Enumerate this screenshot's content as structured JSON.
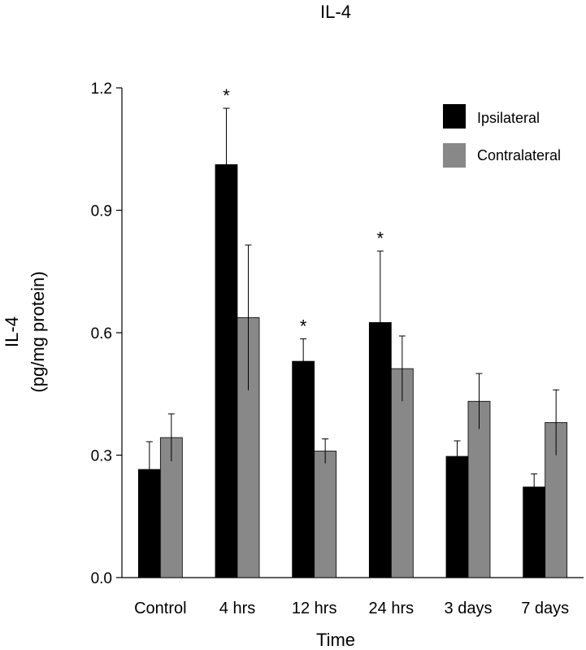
{
  "chart_data": {
    "type": "bar",
    "title": "IL-4",
    "xlabel": "Time",
    "ylabel_line1": "IL-4",
    "ylabel_line2": "(pg/mg protein)",
    "ylim": [
      0,
      1.2
    ],
    "yticks": [
      0.0,
      0.3,
      0.6,
      0.9,
      1.2
    ],
    "ytick_labels": [
      "0.0",
      "0.3",
      "0.6",
      "0.9",
      "1.2"
    ],
    "categories": [
      "Control",
      "4 hrs",
      "12 hrs",
      "24 hrs",
      "3 days",
      "7 days"
    ],
    "series": [
      {
        "name": "Ipsilateral",
        "color": "#000000",
        "values": [
          0.265,
          1.012,
          0.53,
          0.625,
          0.297,
          0.222
        ],
        "errors": [
          0.068,
          0.138,
          0.055,
          0.175,
          0.038,
          0.032
        ],
        "significance": [
          "",
          "*",
          "*",
          "*",
          "",
          ""
        ]
      },
      {
        "name": "Contralateral",
        "color": "#888888",
        "values": [
          0.343,
          0.637,
          0.31,
          0.512,
          0.432,
          0.38
        ],
        "errors": [
          0.058,
          0.178,
          0.03,
          0.08,
          0.068,
          0.08
        ],
        "significance": [
          "",
          "",
          "",
          "",
          "",
          ""
        ]
      }
    ],
    "legend": {
      "position": "top-right"
    },
    "grid": false
  }
}
